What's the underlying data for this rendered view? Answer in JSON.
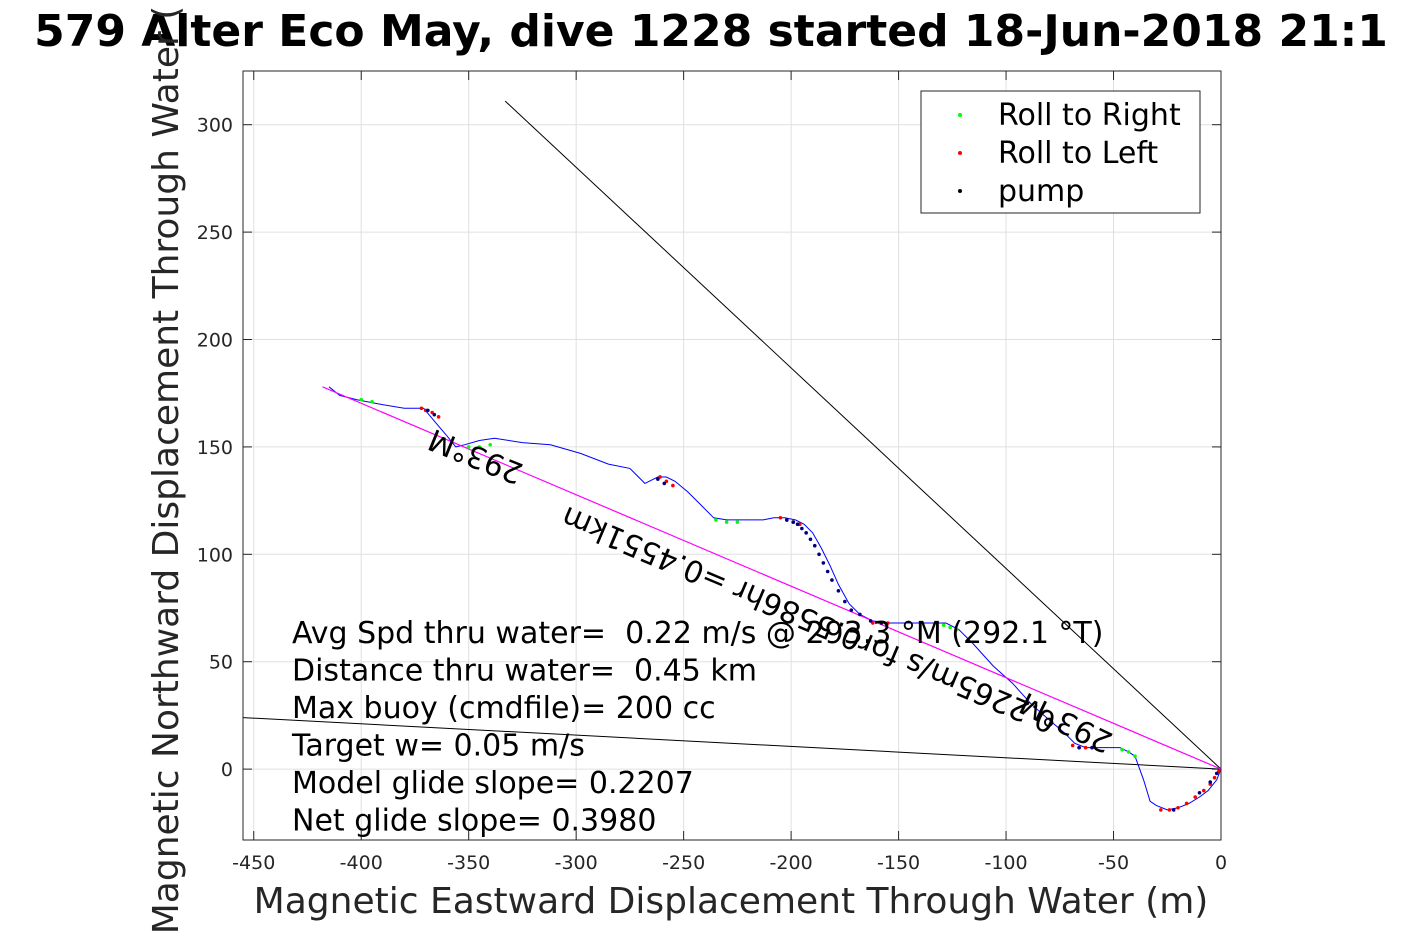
{
  "chart_data": {
    "type": "line",
    "title": "579 Alter Eco May, dive 1228 started 18-Jun-2018 21:1",
    "xlabel": "Magnetic Eastward Displacement Through Water (m)",
    "ylabel": "Magnetic Northward Displacement Through Water (",
    "xlim": [
      -455,
      0
    ],
    "ylim": [
      -33,
      325
    ],
    "xticks": [
      -450,
      -400,
      -350,
      -300,
      -250,
      -200,
      -150,
      -100,
      -50,
      0
    ],
    "xtick_labels": [
      "-450",
      "-400",
      "-350",
      "-300",
      "-250",
      "-200",
      "-150",
      "-100",
      "-50",
      "0"
    ],
    "yticks": [
      0,
      50,
      100,
      150,
      200,
      250,
      300
    ],
    "ytick_labels": [
      "0",
      "50",
      "100",
      "150",
      "200",
      "250",
      "300"
    ],
    "grid": true,
    "legend_position": "top-right",
    "legend": [
      {
        "label": "Roll to Right",
        "color": "#00ff00"
      },
      {
        "label": "Roll to Left",
        "color": "#ff0000"
      },
      {
        "label": "pump",
        "color": "#000000"
      }
    ],
    "series": [
      {
        "name": "track",
        "color": "#0000ff",
        "x": [
          0,
          -2,
          -6,
          -10,
          -15,
          -20,
          -25,
          -30,
          -33,
          -36,
          -40,
          -43,
          -47,
          -52,
          -58,
          -63,
          -68,
          -73,
          -80,
          -88,
          -97,
          -106,
          -115,
          -122,
          -128,
          -135,
          -145,
          -155,
          -162,
          -168,
          -173,
          -178,
          -182,
          -186,
          -190,
          -194,
          -198,
          -203,
          -208,
          -213,
          -220,
          -230,
          -236,
          -242,
          -248,
          -254,
          -258,
          -262,
          -268,
          -275,
          -285,
          -298,
          -312,
          -325,
          -338,
          -345,
          -352,
          -356,
          -360,
          -366,
          -371,
          -380,
          -392,
          -402,
          -410,
          -415
        ],
        "y": [
          0,
          -5,
          -10,
          -13,
          -16,
          -18,
          -19,
          -17,
          -15,
          -5,
          6,
          8,
          10,
          10,
          10,
          10,
          12,
          17,
          23,
          30,
          40,
          48,
          58,
          65,
          68,
          68,
          68,
          68,
          69,
          72,
          77,
          86,
          95,
          103,
          110,
          114,
          116,
          117,
          117,
          116,
          116,
          116,
          117,
          123,
          129,
          134,
          136,
          136,
          133,
          140,
          142,
          147,
          151,
          152,
          154,
          153,
          151,
          150,
          155,
          162,
          168,
          168,
          170,
          172,
          174,
          178
        ]
      },
      {
        "name": "roll_right",
        "color": "#00ff00",
        "x": [
          -40,
          -43,
          -46,
          -123,
          -126,
          -129,
          -225,
          -230,
          -235,
          -340,
          -345,
          -350,
          -395,
          -400
        ],
        "y": [
          6,
          8,
          9,
          65,
          66,
          67,
          115,
          115,
          116,
          151,
          150,
          150,
          171,
          172
        ]
      },
      {
        "name": "roll_left",
        "color": "#ff0000",
        "x": [
          -1,
          -3,
          -5,
          -8,
          -12,
          -16,
          -20,
          -24,
          -28,
          -60,
          -63,
          -66,
          -69,
          -155,
          -158,
          -162,
          -196,
          -199,
          -202,
          -205,
          -255,
          -258,
          -261,
          -364,
          -367,
          -370,
          -372
        ],
        "y": [
          -1,
          -4,
          -7,
          -10,
          -13,
          -16,
          -18,
          -19,
          -19,
          10,
          10,
          10,
          11,
          68,
          68,
          68,
          114,
          115,
          116,
          117,
          132,
          134,
          136,
          164,
          166,
          167,
          168
        ]
      },
      {
        "name": "pump",
        "color": "#000080",
        "x": [
          -2,
          -5,
          -10,
          -22,
          -60,
          -66,
          -158,
          -163,
          -168,
          -172,
          -175,
          -178,
          -181,
          -183,
          -185,
          -187,
          -189,
          -191,
          -193,
          -195,
          -197,
          -199,
          -202,
          -259,
          -262,
          -366,
          -369
        ],
        "y": [
          -2,
          -6,
          -11,
          -19,
          10,
          10,
          68,
          69,
          72,
          74,
          78,
          83,
          88,
          92,
          96,
          100,
          104,
          107,
          110,
          112,
          114,
          115,
          116,
          133,
          135,
          165,
          167
        ]
      },
      {
        "name": "net_track",
        "color": "#ff00ff",
        "x": [
          0,
          -418
        ],
        "y": [
          0,
          178
        ]
      },
      {
        "name": "glide_line_upper",
        "color": "#000000",
        "x": [
          0,
          -333
        ],
        "y": [
          0,
          311
        ]
      },
      {
        "name": "glide_line_lower",
        "color": "#000000",
        "x": [
          0,
          -455
        ],
        "y": [
          0,
          24
        ]
      }
    ],
    "annotations": [
      {
        "text": "293°M",
        "x": -345,
        "y": 150,
        "rotation_deg": 202
      },
      {
        "text": "0.2265m/s for0.5586hr =0.4551km",
        "x": -190,
        "y": 74,
        "rotation_deg": 203
      },
      {
        "text": "293°M",
        "x": -70,
        "y": 26,
        "rotation_deg": 206
      }
    ]
  },
  "stats": [
    "Avg Spd thru water=  0.22 m/s @ 293.3 °M (292.1 °T)",
    "Distance thru water=  0.45 km",
    "Max buoy (cmdfile)= 200 cc",
    "Target w= 0.05 m/s",
    "Model glide slope= 0.2207",
    "Net glide slope= 0.3980"
  ]
}
